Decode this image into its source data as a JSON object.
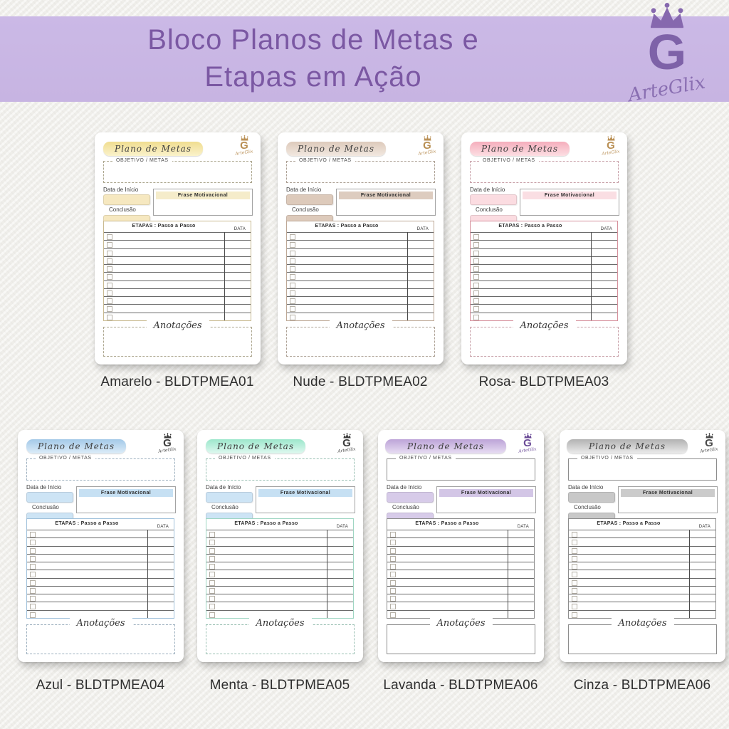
{
  "page": {
    "background_color": "#f2f1ed"
  },
  "header": {
    "title_line1": "Bloco Planos de Metas e",
    "title_line2": "Etapas em Ação",
    "banner_color": "#c9b6e4",
    "title_color": "#7b58a3",
    "brand": {
      "name": "ArteGlix",
      "monogram": "G",
      "color": "#8366ad"
    }
  },
  "card_template": {
    "banner_title": "Plano de Metas",
    "objetivo_label": "OBJETIVO / METAS",
    "data_inicio_label": "Data de Início",
    "conclusao_label": "Conclusão",
    "frase_label": "Frase  Motivacional",
    "etapas_label": "ETAPAS : Passo a Passo",
    "data_col_label": "DATA",
    "anotacoes_label": "Anotações",
    "brand_name": "ArteGlix",
    "monogram": "G",
    "etapas_rows": 11
  },
  "cards": [
    {
      "caption": "Amarelo - BLDTPMEA01",
      "layout": "dashed",
      "colors": {
        "banner1": "#f0dd90",
        "banner2": "#faf2cb",
        "field": "#f6e8c0",
        "frase": "#f5ecca",
        "table": "#c9ba90",
        "logo": "#b98f54",
        "dash": "#aca68e"
      }
    },
    {
      "caption": "Nude - BLDTPMEA02",
      "layout": "dashed",
      "colors": {
        "banner1": "#ddcabb",
        "banner2": "#f1e8e0",
        "field": "#ddcabb",
        "frase": "#ddccbf",
        "table": "#bda896",
        "logo": "#b98f54",
        "dash": "#ada195"
      }
    },
    {
      "caption": "Rosa- BLDTPMEA03",
      "layout": "dashed",
      "colors": {
        "banner1": "#f5aebc",
        "banner2": "#fcdee3",
        "field": "#fbdce1",
        "frase": "#fadee3",
        "table": "#d6909c",
        "logo": "#b98f54",
        "dash": "#c79fa7"
      }
    },
    {
      "caption": "Azul - BLDTPMEA04",
      "layout": "dashed",
      "colors": {
        "banner1": "#a4c9e8",
        "banner2": "#dcecf8",
        "field": "#cde4f5",
        "frase": "#c6e0f3",
        "table": "#a0c1db",
        "logo": "#3d3d3d",
        "dash": "#9cafbe"
      }
    },
    {
      "caption": "Menta - BLDTPMEA05",
      "layout": "dashed",
      "colors": {
        "banner1": "#9de7cc",
        "banner2": "#def8ef",
        "field": "#cde4f5",
        "frase": "#c6e0f3",
        "table": "#9fd6c3",
        "logo": "#3d3d3d",
        "dash": "#99bfb2"
      }
    },
    {
      "caption": "Lavanda - BLDTPMEA06",
      "layout": "solid",
      "colors": {
        "banner1": "#bda4d8",
        "banner2": "#e7ddf2",
        "field": "#d7cbe9",
        "frase": "#d3c6e6",
        "table": "#8d8d8d",
        "logo": "#6b4b97",
        "dash": "#8d8d8d"
      }
    },
    {
      "caption": "Cinza - BLDTPMEA06",
      "layout": "solid",
      "colors": {
        "banner1": "#b2b2b2",
        "banner2": "#ebebeb",
        "field": "#c8c8c8",
        "frase": "#cbcbcb",
        "table": "#8d8d8d",
        "logo": "#4a4a4a",
        "dash": "#8d8d8d"
      }
    }
  ]
}
